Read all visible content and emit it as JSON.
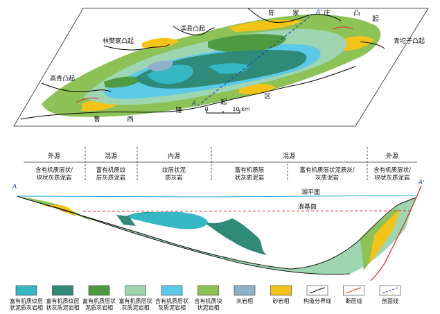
{
  "map": {
    "uplifts": {
      "chenjiazhuang": [
        "陈",
        "家",
        "庄",
        "凸",
        "起"
      ],
      "binxian": "滨县凸起",
      "linfanjia": "林樊家凸起",
      "gaoqing": "高青凸起",
      "qingtuozi": "青坨子凸起",
      "luxi": [
        "鲁",
        "西",
        "隆",
        "起",
        "区"
      ]
    },
    "profile_end_a": "A",
    "profile_end_a_prime": "A'",
    "scale": {
      "zero": "0",
      "ten": "10 km"
    }
  },
  "section": {
    "end_a": "A",
    "end_a_prime": "A'",
    "lake_level": "湖平面",
    "wave_base": "浪基面",
    "sources": [
      "外源",
      "混源",
      "内源",
      "混源",
      "外源"
    ],
    "lithologies": [
      "含有机质层状/块状灰质泥岩",
      "富有机质纹层灰质泥岩",
      "纹层状泥质灰岩",
      "富有机质层状灰质泥岩",
      "富有机质层状泥质灰/灰质泥岩",
      "含有机质层状/块状灰质泥岩"
    ]
  },
  "legend": [
    {
      "label": "富有机质纹层状泥质灰岩相",
      "color": "#35b7c4",
      "icon": "swatch"
    },
    {
      "label": "富有机质纹层状灰质泥岩相",
      "color": "#2f8a78",
      "icon": "swatch"
    },
    {
      "label": "富有机质层状泥质灰岩相",
      "color": "#4f9a40",
      "icon": "swatch"
    },
    {
      "label": "富有机质层状灰质泥岩相",
      "color": "#9fd6b2",
      "icon": "swatch"
    },
    {
      "label": "含有机质层状灰质泥岩相",
      "color": "#5bc9e8",
      "icon": "swatch"
    },
    {
      "label": "含有机质块状泥岩相",
      "color": "#8cc256",
      "icon": "swatch"
    },
    {
      "label": "灰岩相",
      "color": "#8fb0c9",
      "icon": "swatch"
    },
    {
      "label": "砂岩相",
      "color": "#f4c318",
      "icon": "swatch"
    },
    {
      "label": "构造分界线",
      "color": "#000000",
      "icon": "structure-boundary-icon"
    },
    {
      "label": "断层线",
      "color": "#e02020",
      "icon": "fault-line-icon"
    },
    {
      "label": "剖面线",
      "color": "#2244aa",
      "icon": "section-line-icon"
    }
  ]
}
